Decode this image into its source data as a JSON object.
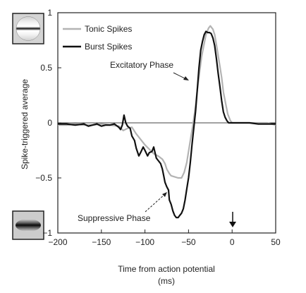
{
  "chart_data": {
    "type": "line",
    "xlabel": "Time from action potential",
    "xunit": "(ms)",
    "ylabel": "Spike-triggered average",
    "xlim": [
      -200,
      50
    ],
    "ylim": [
      -1,
      1
    ],
    "xticks": [
      -200,
      -150,
      -100,
      -50,
      0,
      50
    ],
    "xtick_labels": [
      "−200",
      "−150",
      "−100",
      "−50",
      "0",
      "50"
    ],
    "yticks": [
      -1,
      -0.5,
      0,
      0.5,
      1
    ],
    "ytick_labels": [
      "−1",
      "−0.5",
      "0",
      "0.5",
      "1"
    ],
    "grid": false,
    "legend_position": "top-left",
    "zero_line": true,
    "series": [
      {
        "name": "Tonic Spikes",
        "color": "#b3b3b3",
        "x": [
          -200,
          -190,
          -180,
          -170,
          -160,
          -150,
          -140,
          -130,
          -125,
          -120,
          -115,
          -110,
          -100,
          -95,
          -90,
          -85,
          -80,
          -77,
          -75,
          -72,
          -70,
          -66,
          -62,
          -58,
          -55,
          -52,
          -50,
          -48,
          -45,
          -42,
          -40,
          -37,
          -35,
          -32,
          -30,
          -27,
          -25,
          -22,
          -20,
          -17,
          -15,
          -12,
          -10,
          -7,
          -5,
          -2,
          0,
          5,
          10,
          20,
          30,
          40,
          50
        ],
        "y": [
          -0.02,
          -0.02,
          -0.01,
          -0.02,
          -0.02,
          -0.01,
          -0.02,
          -0.03,
          -0.07,
          -0.05,
          -0.04,
          -0.1,
          -0.2,
          -0.24,
          -0.28,
          -0.3,
          -0.33,
          -0.37,
          -0.42,
          -0.46,
          -0.48,
          -0.49,
          -0.5,
          -0.5,
          -0.45,
          -0.36,
          -0.26,
          -0.16,
          -0.02,
          0.15,
          0.3,
          0.48,
          0.6,
          0.72,
          0.8,
          0.86,
          0.88,
          0.85,
          0.8,
          0.66,
          0.56,
          0.41,
          0.28,
          0.16,
          0.08,
          0.02,
          0.0,
          0.0,
          0.0,
          0.0,
          0.0,
          0.0,
          -0.02
        ]
      },
      {
        "name": "Burst Spikes",
        "color": "#111111",
        "x": [
          -200,
          -190,
          -180,
          -170,
          -165,
          -160,
          -155,
          -150,
          -145,
          -140,
          -135,
          -130,
          -128,
          -126,
          -124,
          -122,
          -120,
          -117,
          -115,
          -112,
          -110,
          -107,
          -105,
          -102,
          -100,
          -97,
          -95,
          -92,
          -90,
          -87,
          -85,
          -82,
          -80,
          -78,
          -77,
          -75,
          -73,
          -72,
          -70,
          -68,
          -66,
          -64,
          -62,
          -60,
          -58,
          -56,
          -54,
          -52,
          -50,
          -48,
          -46,
          -44,
          -42,
          -40,
          -38,
          -36,
          -34,
          -32,
          -30,
          -28,
          -26,
          -24,
          -22,
          -20,
          -18,
          -16,
          -14,
          -12,
          -10,
          -8,
          -6,
          -4,
          -2,
          0,
          5,
          10,
          20,
          30,
          40,
          50
        ],
        "y": [
          -0.01,
          -0.01,
          -0.02,
          -0.01,
          -0.03,
          -0.02,
          -0.01,
          -0.03,
          -0.02,
          -0.02,
          -0.01,
          -0.04,
          -0.06,
          -0.02,
          0.07,
          0.0,
          -0.03,
          -0.05,
          -0.12,
          -0.16,
          -0.23,
          -0.3,
          -0.27,
          -0.22,
          -0.25,
          -0.3,
          -0.27,
          -0.26,
          -0.22,
          -0.32,
          -0.34,
          -0.37,
          -0.42,
          -0.5,
          -0.54,
          -0.58,
          -0.61,
          -0.7,
          -0.74,
          -0.8,
          -0.84,
          -0.86,
          -0.86,
          -0.84,
          -0.82,
          -0.78,
          -0.7,
          -0.6,
          -0.5,
          -0.36,
          -0.2,
          -0.05,
          0.1,
          0.3,
          0.5,
          0.66,
          0.74,
          0.8,
          0.83,
          0.82,
          0.82,
          0.81,
          0.77,
          0.7,
          0.58,
          0.45,
          0.33,
          0.2,
          0.1,
          0.05,
          0.02,
          0.0,
          0.0,
          0.0,
          0.0,
          0.0,
          0.0,
          -0.01,
          -0.01,
          -0.01
        ]
      }
    ],
    "annotations": [
      {
        "text": "Excitatory Phase",
        "arrow_to": [
          -47,
          0.5
        ]
      },
      {
        "text": "Suppressive Phase",
        "arrow_to": [
          -73,
          -0.68
        ]
      },
      {
        "text": "↓",
        "at_x": 0,
        "near_y": -0.88
      }
    ]
  }
}
